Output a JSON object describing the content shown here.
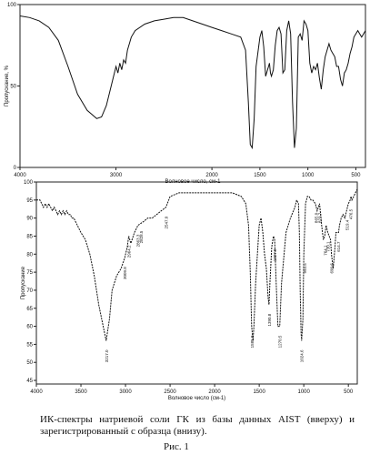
{
  "chart_data": [
    {
      "type": "line",
      "title": "",
      "xlabel": "Волновое число, см-1",
      "ylabel": "Пропускание, %",
      "xlim": [
        4000,
        400
      ],
      "ylim": [
        0,
        100
      ],
      "x_tick_labels": [
        "4000",
        "3000",
        "2000",
        "1500",
        "1000",
        "500"
      ],
      "x_tick_values": [
        4000,
        3000,
        2000,
        1500,
        1000,
        500
      ],
      "y_tick_labels": [
        "0",
        "50",
        "100"
      ],
      "y_tick_values": [
        0,
        50,
        100
      ],
      "grid": false,
      "series": [
        {
          "x": [
            4000,
            3900,
            3800,
            3700,
            3600,
            3500,
            3400,
            3300,
            3200,
            3150,
            3100,
            3050,
            3000,
            2980,
            2960,
            2940,
            2920,
            2900,
            2880,
            2860,
            2840,
            2800,
            2700,
            2600,
            2500,
            2400,
            2300,
            2200,
            2100,
            2000,
            1900,
            1800,
            1700,
            1650,
            1620,
            1600,
            1580,
            1560,
            1540,
            1500,
            1480,
            1460,
            1440,
            1420,
            1410,
            1400,
            1390,
            1380,
            1360,
            1340,
            1320,
            1300,
            1280,
            1260,
            1240,
            1220,
            1200,
            1180,
            1160,
            1140,
            1120,
            1100,
            1080,
            1060,
            1050,
            1040,
            1020,
            1000,
            980,
            960,
            940,
            920,
            900,
            880,
            860,
            840,
            820,
            800,
            780,
            760,
            740,
            720,
            700,
            680,
            660,
            640,
            620,
            600,
            580,
            560,
            540,
            520,
            500,
            480,
            460,
            440,
            420,
            400
          ],
          "y": [
            93,
            92,
            90,
            86,
            78,
            62,
            45,
            35,
            30,
            31,
            38,
            50,
            62,
            58,
            64,
            60,
            66,
            64,
            72,
            76,
            80,
            84,
            88,
            90,
            91,
            92,
            92,
            90,
            88,
            86,
            84,
            82,
            80,
            72,
            40,
            14,
            12,
            30,
            62,
            80,
            84,
            74,
            56,
            60,
            62,
            64,
            58,
            56,
            60,
            75,
            84,
            86,
            82,
            58,
            60,
            84,
            90,
            82,
            40,
            12,
            24,
            80,
            82,
            78,
            84,
            90,
            88,
            84,
            64,
            58,
            62,
            60,
            64,
            55,
            48,
            60,
            68,
            72,
            76,
            72,
            70,
            68,
            62,
            62,
            54,
            50,
            58,
            60,
            64,
            70,
            74,
            80,
            82,
            84,
            82,
            80,
            82,
            84
          ],
          "name": ""
        }
      ]
    },
    {
      "type": "line",
      "title": "",
      "xlabel": "Волновое число (см-1)",
      "ylabel": "Пропускание",
      "xlim": [
        4000,
        400
      ],
      "ylim": [
        44,
        100
      ],
      "x_tick_labels": [
        "4000",
        "3500",
        "3000",
        "2500",
        "2000",
        "1500",
        "1000",
        "500"
      ],
      "x_tick_values": [
        4000,
        3500,
        3000,
        2500,
        2000,
        1500,
        1000,
        500
      ],
      "y_tick_labels": [
        "45",
        "50",
        "55",
        "60",
        "65",
        "70",
        "75",
        "80",
        "85",
        "90",
        "95",
        "100"
      ],
      "y_tick_values": [
        45,
        50,
        55,
        60,
        65,
        70,
        75,
        80,
        85,
        90,
        95,
        100
      ],
      "grid": false,
      "series": [
        {
          "x": [
            4000,
            3980,
            3960,
            3940,
            3920,
            3900,
            3880,
            3860,
            3840,
            3820,
            3800,
            3780,
            3760,
            3740,
            3720,
            3700,
            3680,
            3660,
            3640,
            3620,
            3600,
            3580,
            3560,
            3540,
            3500,
            3450,
            3400,
            3350,
            3300,
            3250,
            3217,
            3180,
            3150,
            3100,
            3050,
            3009,
            2980,
            2964,
            2940,
            2900,
            2860,
            2800,
            2750,
            2700,
            2650,
            2600,
            2547,
            2500,
            2400,
            2200,
            2000,
            1800,
            1700,
            1650,
            1620,
            1600,
            1585,
            1570,
            1560,
            1540,
            1500,
            1480,
            1460,
            1440,
            1420,
            1400,
            1390,
            1380,
            1360,
            1340,
            1327,
            1310,
            1290,
            1270,
            1250,
            1200,
            1150,
            1100,
            1080,
            1060,
            1050,
            1040,
            1030,
            1024,
            1010,
            1000,
            980,
            960,
            940,
            920,
            900,
            870,
            850,
            823,
            800,
            780,
            765,
            750,
            730,
            700,
            690,
            670,
            650,
            640,
            610,
            600,
            580,
            560,
            540,
            520,
            500,
            480,
            470,
            460,
            440,
            420,
            400
          ],
          "y": [
            95,
            95,
            95,
            94,
            93,
            94,
            93,
            94,
            93,
            92,
            93,
            92,
            91,
            92,
            91,
            92,
            91,
            92,
            91,
            91,
            90,
            90,
            89,
            88,
            86,
            84,
            80,
            74,
            66,
            60,
            56,
            62,
            70,
            74,
            76,
            79,
            82,
            85,
            83,
            86,
            88,
            89,
            90,
            90,
            91,
            92,
            93,
            96,
            97,
            97,
            97,
            97,
            96,
            94,
            88,
            75,
            60,
            56,
            60,
            72,
            88,
            90,
            86,
            80,
            76,
            68,
            66,
            72,
            82,
            85,
            84,
            72,
            60,
            60,
            72,
            86,
            90,
            93,
            95,
            94,
            86,
            70,
            58,
            56,
            62,
            80,
            94,
            96,
            96,
            95,
            95,
            94,
            92,
            94,
            88,
            84,
            85,
            88,
            86,
            84,
            80,
            76,
            82,
            86,
            86,
            88,
            90,
            91,
            90,
            92,
            94,
            95,
            96,
            95,
            96,
            97,
            98
          ],
          "name": ""
        }
      ],
      "annotations": [
        "3217.0",
        "3009.8",
        "2964.2",
        "2863.3",
        "2828.5",
        "2547.0",
        "1585.0",
        "1390.8",
        "1327.8",
        "1270.5",
        "1024.6",
        "993.5",
        "865.0",
        "823.7",
        "764.1",
        "730.1",
        "690.6",
        "614.7",
        "519.4",
        "476.5"
      ]
    }
  ],
  "caption": "ИК-спектры натриевой соли ГК из базы данных AIST (вверху) и зарегистрированный с образца (внизу).",
  "figure_label": "Рис. 1"
}
